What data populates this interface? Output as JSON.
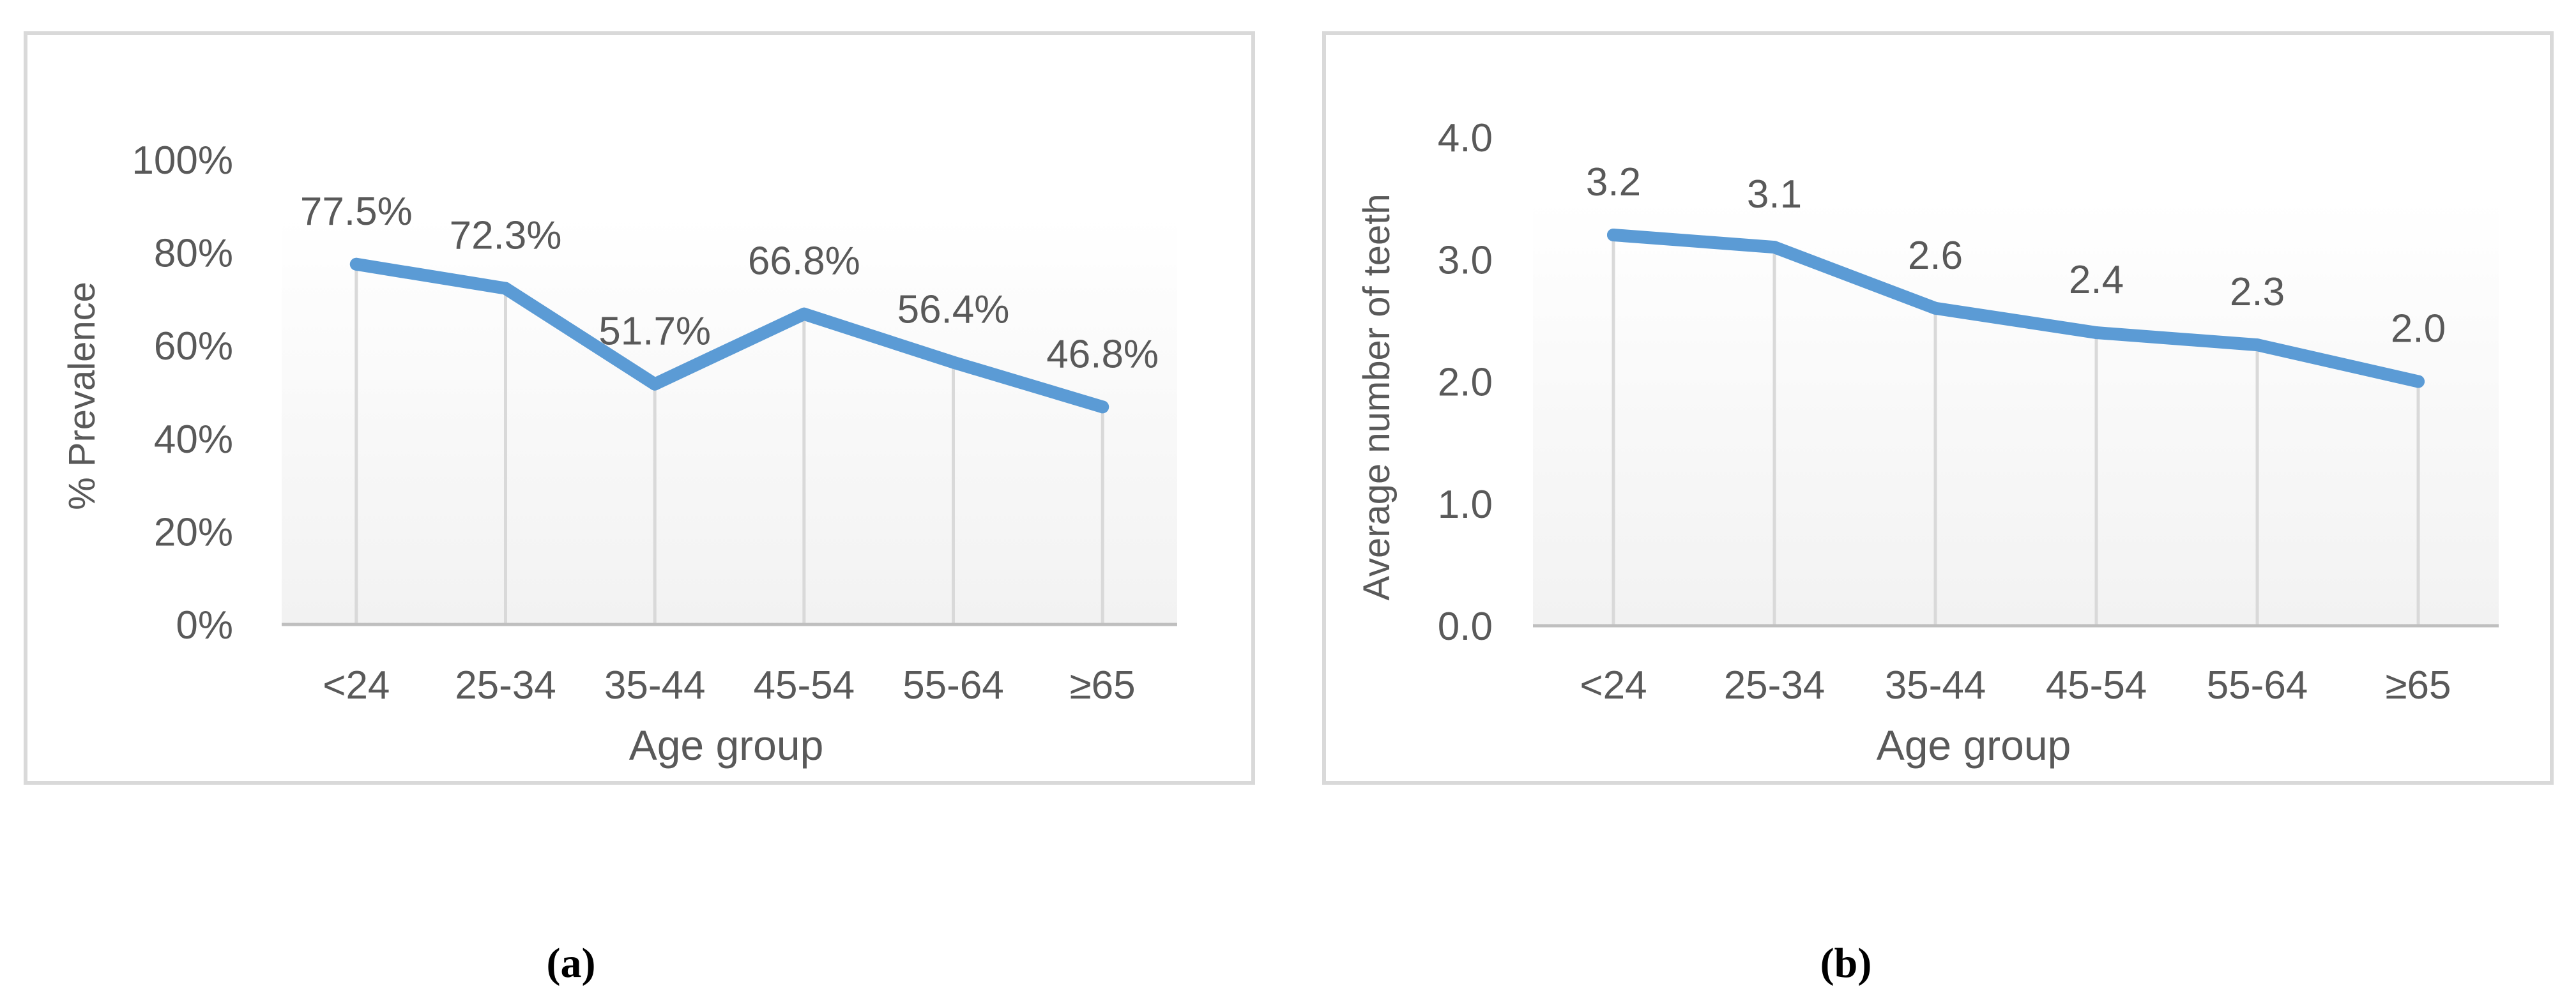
{
  "chart_data": [
    {
      "type": "line",
      "title": "",
      "xlabel": "Age group",
      "ylabel": "% Prevalence",
      "categories": [
        "<24",
        "25-34",
        "35-44",
        "45-54",
        "55-64",
        "≥65"
      ],
      "series": [
        {
          "values": [
            77.5,
            72.3,
            51.7,
            66.8,
            56.4,
            46.8
          ],
          "color": "#5B9BD5"
        }
      ],
      "data_labels": [
        "77.5%",
        "72.3%",
        "51.7%",
        "66.8%",
        "56.4%",
        "46.8%"
      ],
      "ylim": [
        0,
        100
      ],
      "yticks": [
        0,
        20,
        40,
        60,
        80,
        100
      ],
      "ytick_labels": [
        "0%",
        "20%",
        "40%",
        "60%",
        "80%",
        "100%"
      ],
      "grid": "vertical drop lines",
      "legend": "none",
      "panel_label": "(a)"
    },
    {
      "type": "line",
      "title": "",
      "xlabel": "Age group",
      "ylabel": "Average number of teeth",
      "categories": [
        "<24",
        "25-34",
        "35-44",
        "45-54",
        "55-64",
        "≥65"
      ],
      "series": [
        {
          "values": [
            3.2,
            3.1,
            2.6,
            2.4,
            2.3,
            2.0
          ],
          "color": "#5B9BD5"
        }
      ],
      "data_labels": [
        "3.2",
        "3.1",
        "2.6",
        "2.4",
        "2.3",
        "2.0"
      ],
      "ylim": [
        0,
        4
      ],
      "yticks": [
        0,
        1,
        2,
        3,
        4
      ],
      "ytick_labels": [
        "0.0",
        "1.0",
        "2.0",
        "3.0",
        "4.0"
      ],
      "grid": "vertical drop lines",
      "legend": "none",
      "panel_label": "(b)"
    }
  ],
  "colors": {
    "line": "#5B9BD5",
    "axis": "#BFBFBF",
    "drop_line": "#D9D9D9",
    "frame": "#D9D9D9",
    "text": "#595959",
    "plot_bg_top": "#FFFFFF",
    "plot_bg_bottom": "#F2F2F2"
  }
}
